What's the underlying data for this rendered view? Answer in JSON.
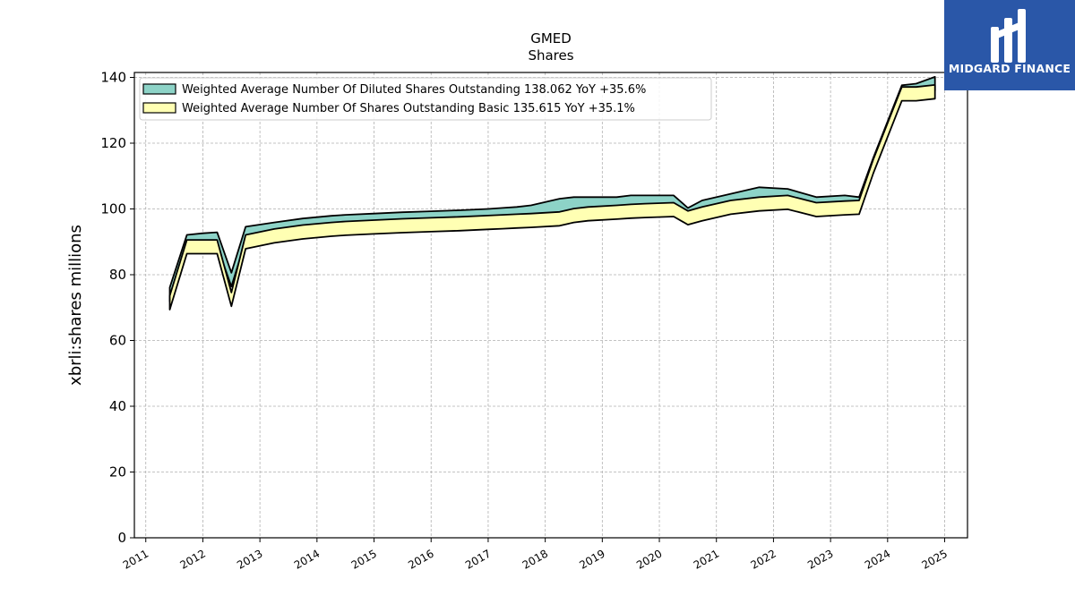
{
  "chart_data": {
    "type": "area",
    "title": "GMED",
    "subtitle": "Shares",
    "xlabel": "",
    "ylabel": "xbrli:shares millions",
    "xlim": [
      2010.8,
      2025.4
    ],
    "ylim": [
      0,
      141.5
    ],
    "yticks": [
      0,
      20,
      40,
      60,
      80,
      100,
      120,
      140
    ],
    "xticks": [
      "2011",
      "2012",
      "2013",
      "2014",
      "2015",
      "2016",
      "2017",
      "2018",
      "2019",
      "2020",
      "2021",
      "2022",
      "2023",
      "2024",
      "2025"
    ],
    "grid": true,
    "legend_position": "top-left",
    "series": [
      {
        "name": "Weighted Average Number Of Diluted Shares Outstanding",
        "legend_label": "Weighted Average Number Of Diluted Shares Outstanding  138.062 YoY +35.6%",
        "color": "#8dd3c7",
        "x": [
          2011.42,
          2011.72,
          2012.0,
          2012.25,
          2012.5,
          2012.75,
          2013.25,
          2013.75,
          2014.25,
          2014.5,
          2015.0,
          2015.5,
          2016.0,
          2016.5,
          2017.0,
          2017.25,
          2017.5,
          2017.75,
          2018.25,
          2018.5,
          2018.75,
          2019.25,
          2019.5,
          2019.75,
          2020.25,
          2020.5,
          2020.75,
          2021.25,
          2021.75,
          2022.25,
          2022.75,
          2023.25,
          2023.5,
          2023.75,
          2024.25,
          2024.5,
          2024.83
        ],
        "values": [
          74.0,
          90.0,
          90.5,
          90.8,
          78.5,
          92.5,
          93.8,
          95.0,
          95.8,
          96.1,
          96.5,
          96.9,
          97.2,
          97.5,
          97.9,
          98.2,
          98.5,
          99.0,
          101.0,
          101.5,
          101.5,
          101.5,
          102.0,
          102.0,
          102.0,
          98.2,
          100.5,
          102.5,
          104.5,
          104.0,
          101.5,
          102.0,
          101.5,
          113.5,
          135.5,
          136.0,
          138.062
        ]
      },
      {
        "name": "Weighted Average Number Of Shares Outstanding Basic",
        "legend_label": "Weighted Average Number Of Shares Outstanding Basic  135.615 YoY +35.1%",
        "color": "#ffffb3",
        "x": [
          2011.42,
          2011.72,
          2012.0,
          2012.25,
          2012.5,
          2012.75,
          2013.25,
          2013.75,
          2014.25,
          2014.5,
          2015.0,
          2015.5,
          2016.0,
          2016.5,
          2017.0,
          2017.25,
          2017.5,
          2017.75,
          2018.25,
          2018.5,
          2018.75,
          2019.25,
          2019.5,
          2019.75,
          2020.25,
          2020.5,
          2020.75,
          2021.25,
          2021.75,
          2022.25,
          2022.75,
          2023.25,
          2023.5,
          2023.75,
          2024.25,
          2024.5,
          2024.83
        ],
        "values": [
          71.5,
          88.5,
          88.5,
          88.5,
          72.5,
          90.0,
          91.8,
          93.0,
          93.8,
          94.1,
          94.5,
          94.9,
          95.2,
          95.5,
          95.9,
          96.1,
          96.3,
          96.5,
          97.0,
          98.0,
          98.5,
          99.0,
          99.3,
          99.5,
          99.8,
          97.3,
          98.5,
          100.5,
          101.5,
          102.0,
          99.8,
          100.3,
          100.5,
          113.0,
          135.0,
          135.0,
          135.615
        ]
      }
    ]
  },
  "logo": {
    "text": "MIDGARD FINANCE",
    "background": "#2a57a8"
  }
}
